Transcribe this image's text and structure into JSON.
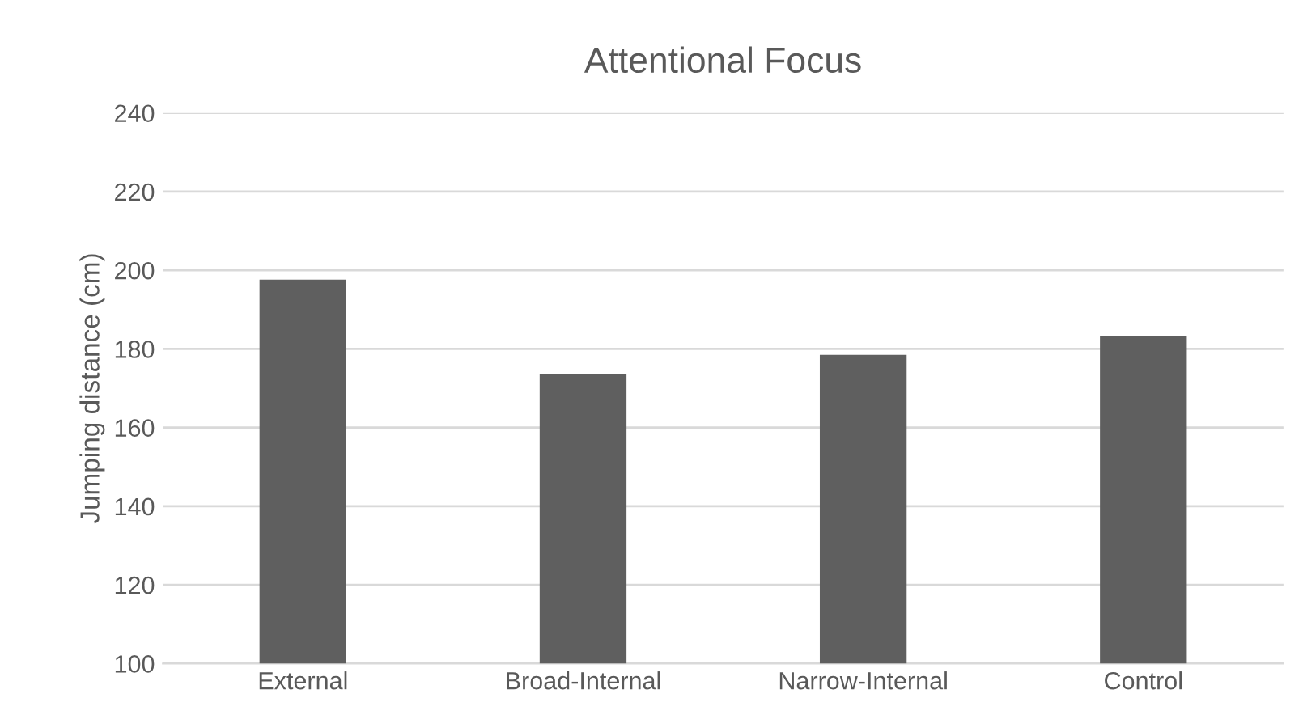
{
  "chart_data": {
    "type": "bar",
    "title": "Attentional Focus",
    "ylabel": "Jumping distance (cm)",
    "categories": [
      "External",
      "Broad-Internal",
      "Narrow-Internal",
      "Control"
    ],
    "values": [
      197.6,
      173.5,
      178.5,
      183.2
    ],
    "color": "#5f5f5f",
    "ylim": [
      100,
      240
    ],
    "yticks": [
      100,
      120,
      140,
      160,
      180,
      200,
      220,
      240
    ],
    "grid": "y"
  }
}
